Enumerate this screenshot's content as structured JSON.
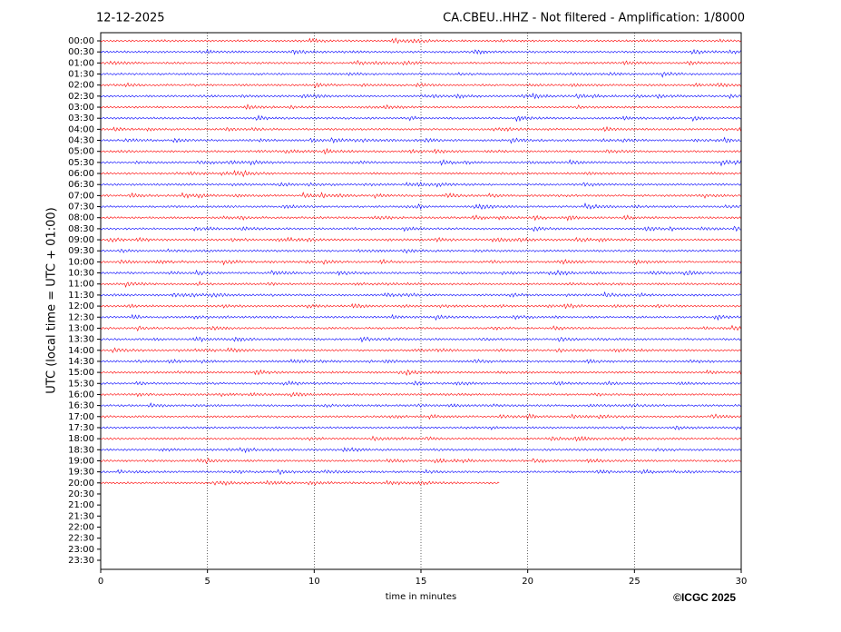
{
  "chart_data": {
    "type": "helicorder",
    "title": "12-12-2025",
    "subtitle": "CA.CBEU..HHZ - Not filtered - Amplification: 1/8000",
    "xlabel": "time in minutes",
    "ylabel": "UTC (local time = UTC + 01:00)",
    "credit": "©ICGC 2025",
    "xlim": [
      0,
      30
    ],
    "xticks": [
      0,
      5,
      10,
      15,
      20,
      25,
      30
    ],
    "grid": true,
    "colors": [
      "#ff0000",
      "#0000ff"
    ],
    "categories": [
      "00:00",
      "00:30",
      "01:00",
      "01:30",
      "02:00",
      "02:30",
      "03:00",
      "03:30",
      "04:00",
      "04:30",
      "05:00",
      "05:30",
      "06:00",
      "06:30",
      "07:00",
      "07:30",
      "08:00",
      "08:30",
      "09:00",
      "09:30",
      "10:00",
      "10:30",
      "11:00",
      "11:30",
      "12:00",
      "12:30",
      "13:00",
      "13:30",
      "14:00",
      "14:30",
      "15:00",
      "15:30",
      "16:00",
      "16:30",
      "17:00",
      "17:30",
      "18:00",
      "18:30",
      "19:00",
      "19:30",
      "20:00",
      "20:30",
      "21:00",
      "21:30",
      "22:00",
      "22:30",
      "23:00",
      "23:30"
    ],
    "values": [
      30,
      30,
      30,
      30,
      30,
      30,
      30,
      30,
      30,
      30,
      30,
      30,
      30,
      30,
      30,
      30,
      30,
      30,
      30,
      30,
      30,
      30,
      30,
      30,
      30,
      30,
      30,
      30,
      30,
      30,
      30,
      30,
      30,
      30,
      30,
      30,
      30,
      30,
      30,
      30,
      18.7,
      null,
      null,
      null,
      null,
      null,
      null,
      null
    ]
  }
}
